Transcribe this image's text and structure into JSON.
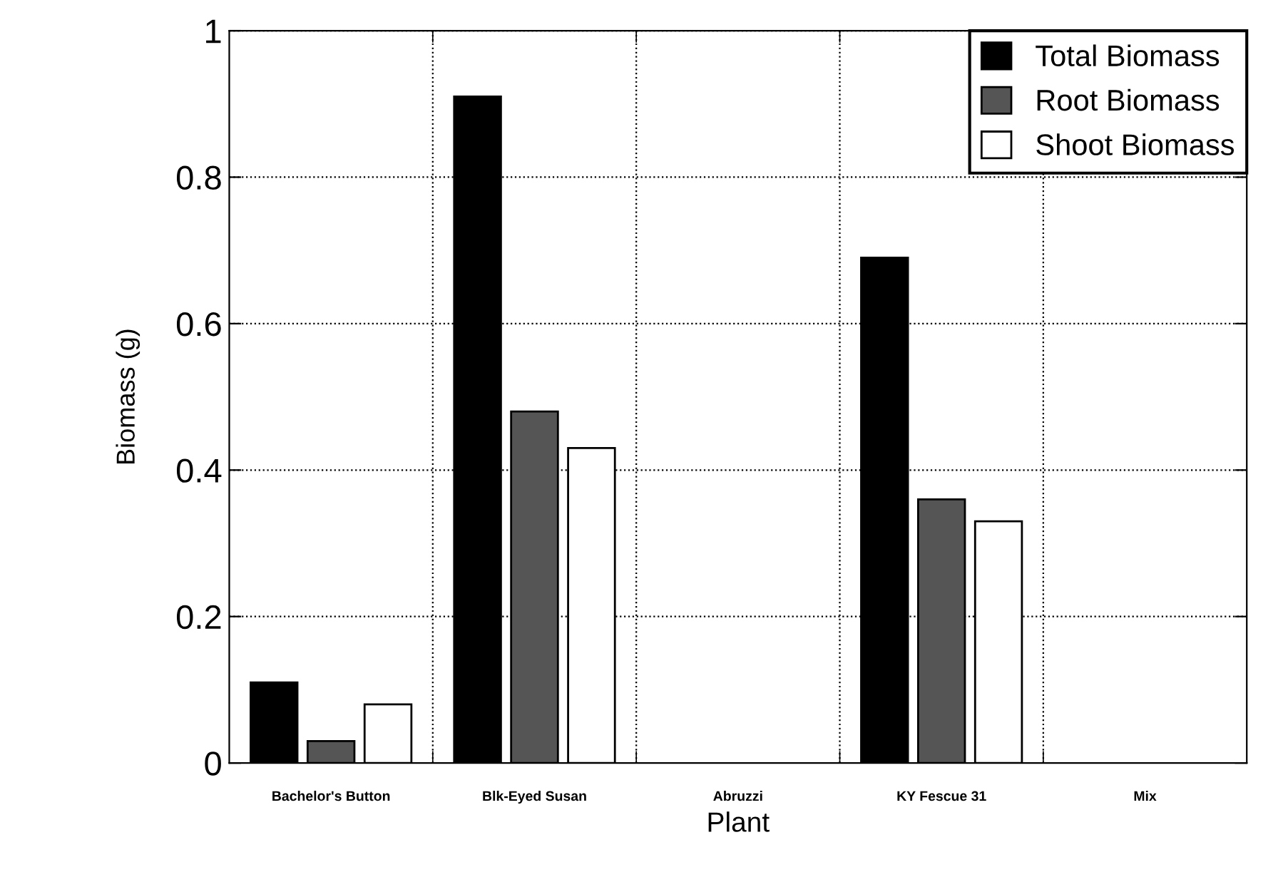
{
  "chart_data": {
    "type": "bar",
    "xlabel": "Plant",
    "ylabel": "Biomass (g)",
    "categories": [
      "Bachelor's Button",
      "Blk-Eyed Susan",
      "Abruzzi",
      "KY Fescue 31",
      "Mix"
    ],
    "series": [
      {
        "name": "Total Biomass",
        "color": "#000000",
        "values": [
          0.11,
          0.91,
          0,
          0.69,
          0
        ]
      },
      {
        "name": "Root Biomass",
        "color": "#555555",
        "values": [
          0.03,
          0.48,
          0,
          0.36,
          0
        ]
      },
      {
        "name": "Shoot Biomass",
        "color": "#ffffff",
        "values": [
          0.08,
          0.43,
          0,
          0.33,
          0
        ]
      }
    ],
    "ylim": [
      0,
      1
    ],
    "yticks": [
      0,
      0.2,
      0.4,
      0.6,
      0.8,
      1
    ],
    "grid": true,
    "legend": "top right"
  }
}
